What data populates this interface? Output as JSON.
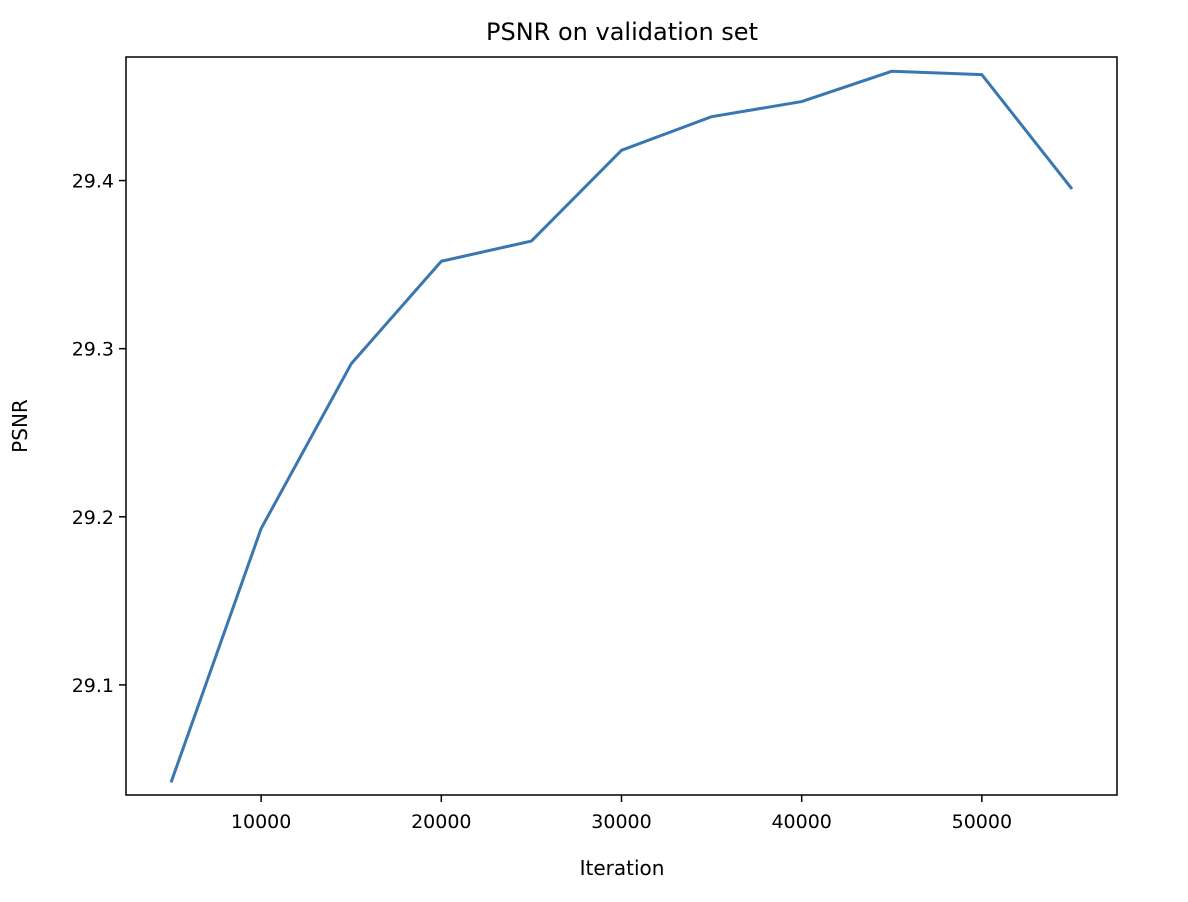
{
  "chart_data": {
    "type": "line",
    "title": "PSNR on validation set",
    "xlabel": "Iteration",
    "ylabel": "PSNR",
    "x": [
      5000,
      10000,
      15000,
      20000,
      25000,
      30000,
      35000,
      40000,
      45000,
      50000,
      55000
    ],
    "series": [
      {
        "values": [
          29.042,
          29.193,
          29.291,
          29.352,
          29.364,
          29.418,
          29.438,
          29.447,
          29.465,
          29.463,
          29.395
        ],
        "color": "#3a76af"
      }
    ],
    "xlim": [
      2500,
      57500
    ],
    "ylim": [
      29.0345,
      29.4735
    ],
    "xticks": [
      10000,
      20000,
      30000,
      40000,
      50000
    ],
    "xtick_labels": [
      "10000",
      "20000",
      "30000",
      "40000",
      "50000"
    ],
    "yticks": [
      29.1,
      29.2,
      29.3,
      29.4
    ],
    "ytick_labels": [
      "29.1",
      "29.2",
      "29.3",
      "29.4"
    ],
    "grid": false,
    "legend": "none"
  }
}
